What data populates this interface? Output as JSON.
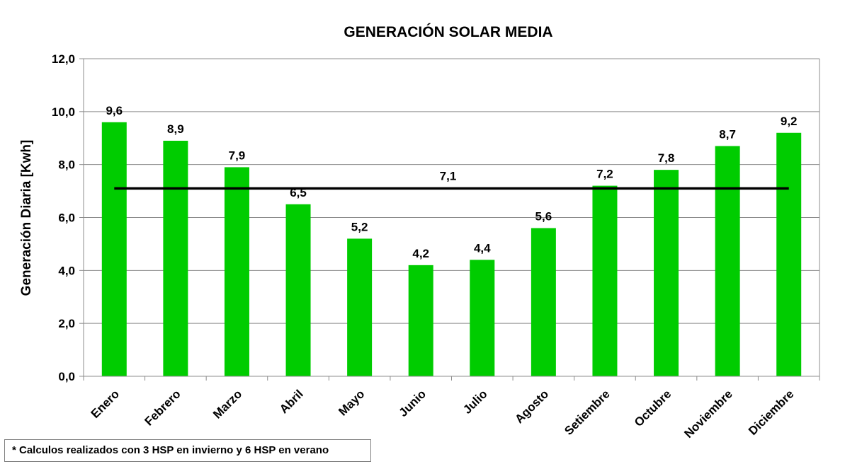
{
  "chart_data": {
    "type": "bar",
    "title": "GENERACIÓN SOLAR MEDIA",
    "xlabel": "",
    "ylabel": "Generación Diaria [Kwh]",
    "ylim": [
      0,
      12
    ],
    "yticks": [
      "0,0",
      "2,0",
      "4,0",
      "6,0",
      "8,0",
      "10,0",
      "12,0"
    ],
    "categories": [
      "Enero",
      "Febrero",
      "Marzo",
      "Abril",
      "Mayo",
      "Junio",
      "Julio",
      "Agosto",
      "Setiembre",
      "Octubre",
      "Noviembre",
      "Diciembre"
    ],
    "series": [
      {
        "values": [
          9.6,
          8.9,
          7.9,
          6.5,
          5.2,
          4.2,
          4.4,
          5.6,
          7.2,
          7.8,
          8.7,
          9.2
        ],
        "labels": [
          "9,6",
          "8,9",
          "7,9",
          "6,5",
          "5,2",
          "4,2",
          "4,4",
          "5,6",
          "7,2",
          "7,8",
          "8,7",
          "9,2"
        ],
        "color": "#00cc00"
      }
    ],
    "average": {
      "value": 7.1,
      "label": "7,1",
      "color": "#000000"
    },
    "grid": true,
    "legend": "none"
  },
  "footnote": "* Calculos realizados con 3 HSP en invierno y 6 HSP en verano"
}
